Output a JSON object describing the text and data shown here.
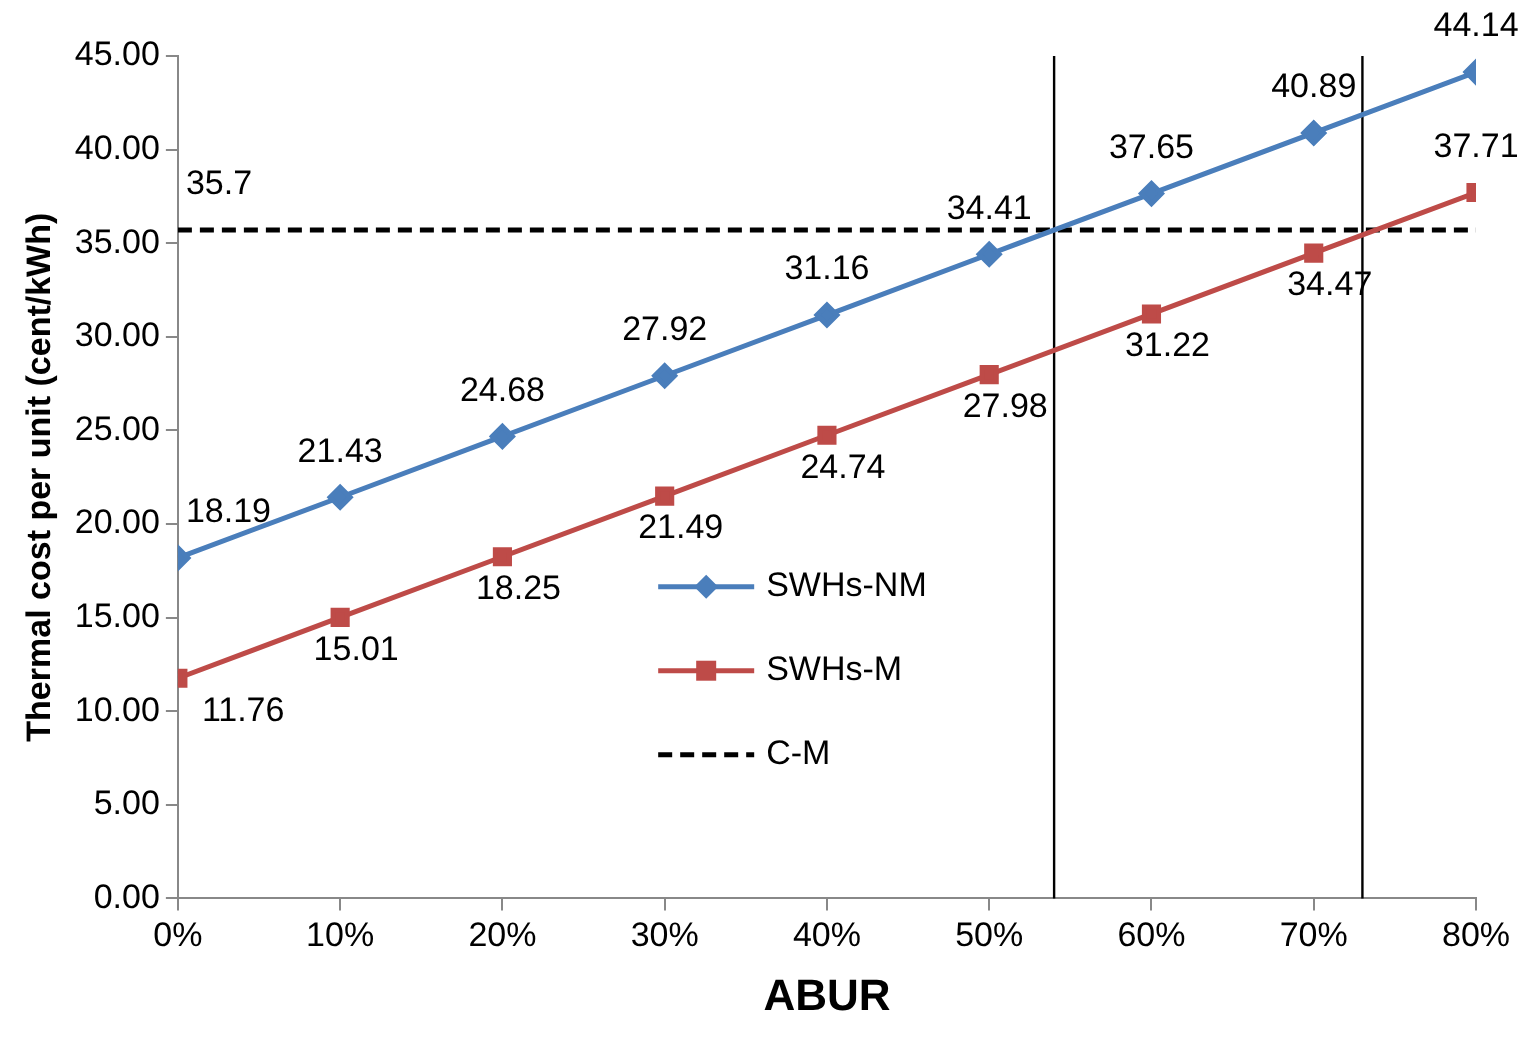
{
  "chart_data": {
    "type": "line",
    "xlabel": "ABUR",
    "ylabel": "Thermal cost per unit (cent/kWh)",
    "x": [
      0,
      10,
      20,
      30,
      40,
      50,
      60,
      70,
      80
    ],
    "xlim": [
      0,
      80
    ],
    "xticks": [
      {
        "value": 0,
        "label": "0%"
      },
      {
        "value": 10,
        "label": "10%"
      },
      {
        "value": 20,
        "label": "20%"
      },
      {
        "value": 30,
        "label": "30%"
      },
      {
        "value": 40,
        "label": "40%"
      },
      {
        "value": 50,
        "label": "50%"
      },
      {
        "value": 60,
        "label": "60%"
      },
      {
        "value": 70,
        "label": "70%"
      },
      {
        "value": 80,
        "label": "80%"
      }
    ],
    "ylim": [
      0,
      45
    ],
    "yticks": [
      {
        "value": 0,
        "label": "0.00"
      },
      {
        "value": 5,
        "label": "5.00"
      },
      {
        "value": 10,
        "label": "10.00"
      },
      {
        "value": 15,
        "label": "15.00"
      },
      {
        "value": 20,
        "label": "20.00"
      },
      {
        "value": 25,
        "label": "25.00"
      },
      {
        "value": 30,
        "label": "30.00"
      },
      {
        "value": 35,
        "label": "35.00"
      },
      {
        "value": 40,
        "label": "40.00"
      },
      {
        "value": 45,
        "label": "45.00"
      }
    ],
    "grid": false,
    "legend": "bottom",
    "line_style": "solid",
    "series": [
      {
        "name": "SWHs-NM",
        "color": "#4a7ebb",
        "marker": "diamond",
        "values": [
          18.19,
          21.43,
          24.68,
          27.92,
          31.16,
          34.41,
          37.65,
          40.89,
          44.14
        ],
        "value_labels": [
          "18.19",
          "21.43",
          "24.68",
          "27.92",
          "31.16",
          "34.41",
          "37.65",
          "40.89",
          "44.14"
        ]
      },
      {
        "name": "SWHs-M",
        "color": "#be4b48",
        "marker": "square",
        "values": [
          11.76,
          15.01,
          18.25,
          21.49,
          24.74,
          27.98,
          31.22,
          34.47,
          37.71
        ],
        "value_labels": [
          "11.76",
          "15.01",
          "18.25",
          "21.49",
          "24.74",
          "27.98",
          "31.22",
          "34.47",
          "37.71"
        ]
      },
      {
        "name": "C-M",
        "color": "#000000",
        "marker": "none",
        "line_style": "dashed",
        "values": [
          35.7,
          35.7,
          35.7,
          35.7,
          35.7,
          35.7,
          35.7,
          35.7,
          35.7
        ],
        "value_labels": [
          "35.7",
          null,
          null,
          null,
          null,
          null,
          null,
          null,
          null
        ]
      }
    ],
    "ref_lines": [
      {
        "axis": "x",
        "value": 54,
        "color": "#000000"
      },
      {
        "axis": "x",
        "value": 73,
        "color": "#000000"
      }
    ]
  }
}
